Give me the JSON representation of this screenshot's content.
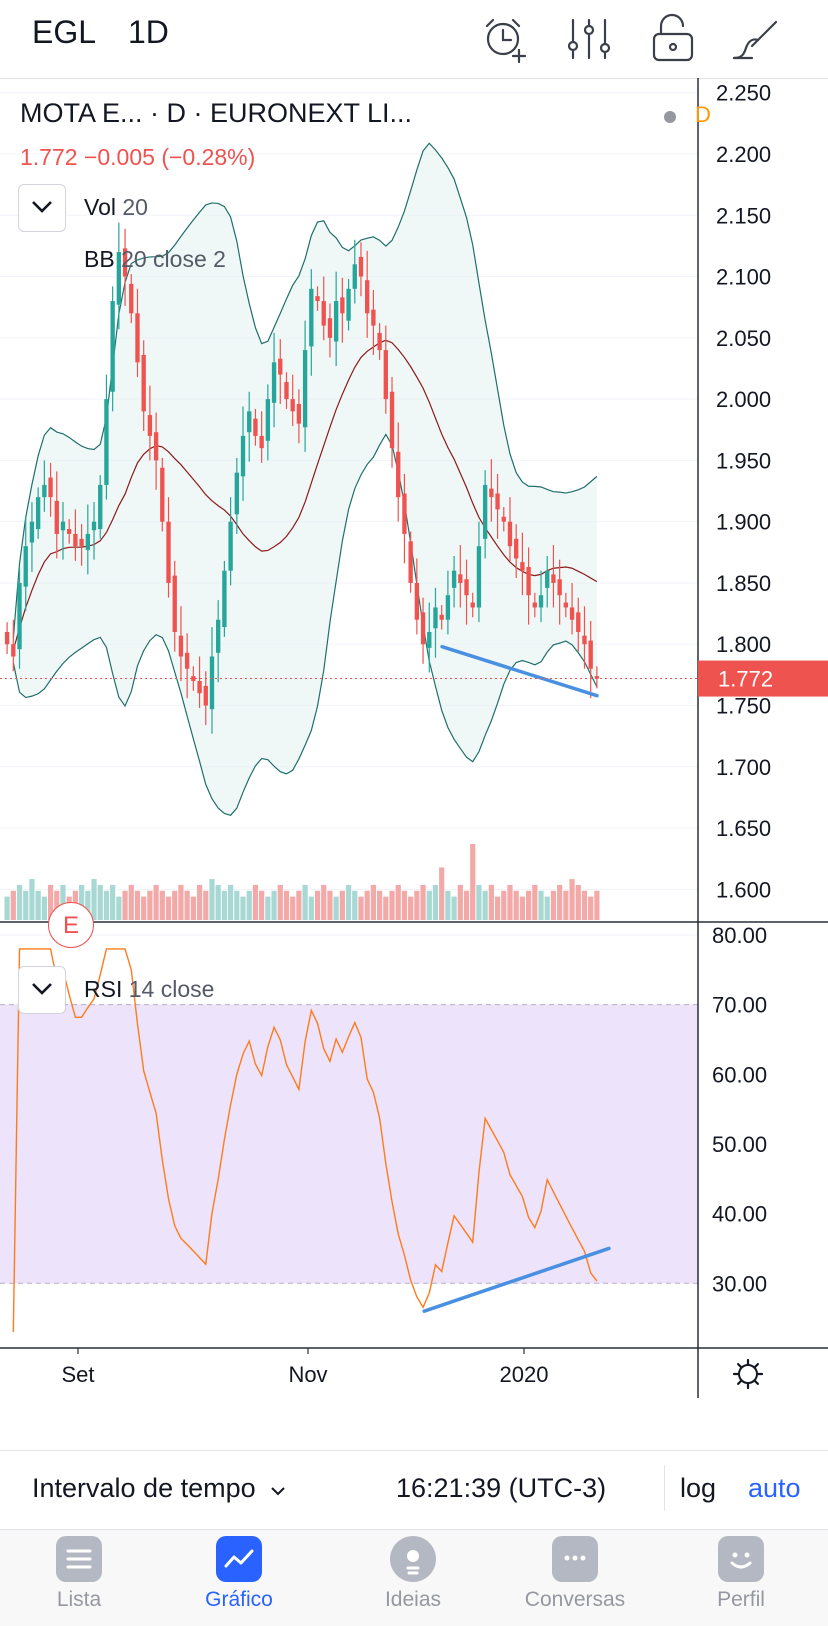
{
  "header": {
    "symbol": "EGL",
    "interval": "1D",
    "icons": [
      "alarm-add-icon",
      "indicators-sliders-icon",
      "unlock-icon",
      "drawing-brush-icon"
    ]
  },
  "legend": {
    "title": "MOTA E...  · D · EURONEXT LI...",
    "price_change": "1.772  −0.005 (−0.28%)",
    "status": "D"
  },
  "indicators": {
    "vol": {
      "name": "Vol",
      "params": "20"
    },
    "bb": {
      "name": "BB",
      "params": "20 close 2"
    },
    "rsi": {
      "name": "RSI",
      "params": "14 close"
    }
  },
  "earnings_badge": "E",
  "toolbar": {
    "range_label": "Intervalo de tempo",
    "time": "16:21:39 (UTC-3)",
    "log_label": "log",
    "auto_label": "auto"
  },
  "tabs": [
    {
      "label": "Lista",
      "icon": "list-icon",
      "active": false
    },
    {
      "label": "Gráfico",
      "icon": "chart-icon",
      "active": true
    },
    {
      "label": "Ideias",
      "icon": "ideas-bulb-icon",
      "active": false
    },
    {
      "label": "Conversas",
      "icon": "chat-icon",
      "active": false
    },
    {
      "label": "Perfil",
      "icon": "profile-icon",
      "active": false
    }
  ],
  "chart_data": [
    {
      "type": "candlestick",
      "ylim": [
        1.575,
        2.262
      ],
      "y_ticks": [
        "2.250",
        "2.200",
        "2.150",
        "2.100",
        "2.050",
        "2.000",
        "1.950",
        "1.900",
        "1.850",
        "1.800",
        "1.750",
        "1.700",
        "1.650",
        "1.600"
      ],
      "last_price": 1.772,
      "last_price_label": "1.772",
      "colors": {
        "up": "#26a69a",
        "down": "#ef5350",
        "bb": "#1f6f6a",
        "bb_mid": "#8b1a1a",
        "trend": "#4a90e2"
      },
      "closes": [
        1.8,
        1.79,
        1.85,
        1.88,
        1.9,
        1.92,
        1.93,
        1.92,
        1.89,
        1.9,
        1.89,
        1.88,
        1.88,
        1.89,
        1.9,
        1.93,
        2.0,
        2.08,
        2.12,
        2.1,
        2.07,
        2.03,
        1.99,
        1.97,
        1.95,
        1.9,
        1.85,
        1.81,
        1.79,
        1.78,
        1.77,
        1.76,
        1.75,
        1.79,
        1.82,
        1.86,
        1.9,
        1.94,
        1.97,
        1.99,
        1.97,
        1.96,
        2.0,
        2.03,
        2.02,
        2.0,
        1.99,
        1.98,
        2.04,
        2.09,
        2.08,
        2.06,
        2.05,
        2.08,
        2.07,
        2.09,
        2.11,
        2.1,
        2.07,
        2.06,
        2.04,
        2.0,
        1.96,
        1.92,
        1.89,
        1.85,
        1.82,
        1.8,
        1.81,
        1.83,
        1.82,
        1.84,
        1.86,
        1.85,
        1.84,
        1.83,
        1.88,
        1.93,
        1.92,
        1.91,
        1.9,
        1.88,
        1.87,
        1.86,
        1.84,
        1.83,
        1.84,
        1.86,
        1.85,
        1.84,
        1.83,
        1.82,
        1.81,
        1.8,
        1.78,
        1.772
      ],
      "trendline": {
        "from": [
          0.735,
          1.798
        ],
        "to": [
          0.995,
          1.758
        ]
      }
    },
    {
      "type": "bar",
      "name": "Vol 20",
      "values": [
        4,
        5,
        6,
        5,
        7,
        5,
        4,
        6,
        5,
        6,
        4,
        5,
        6,
        5,
        7,
        6,
        5,
        6,
        4,
        5,
        6,
        5,
        4,
        5,
        6,
        5,
        4,
        5,
        6,
        5,
        4,
        6,
        5,
        7,
        6,
        5,
        6,
        5,
        4,
        5,
        6,
        5,
        4,
        5,
        6,
        5,
        4,
        5,
        6,
        4,
        5,
        6,
        5,
        4,
        5,
        6,
        5,
        4,
        5,
        6,
        5,
        4,
        5,
        6,
        5,
        4,
        5,
        6,
        5,
        6,
        9,
        5,
        4,
        6,
        5,
        13,
        6,
        5,
        6,
        4,
        5,
        6,
        5,
        4,
        5,
        6,
        5,
        4,
        5,
        6,
        5,
        7,
        6,
        5,
        4,
        5
      ]
    },
    {
      "type": "line",
      "name": "RSI 14 close",
      "ylim": [
        21,
        81
      ],
      "y_ticks": [
        "80.00",
        "70.00",
        "60.00",
        "50.00",
        "40.00",
        "30.00"
      ],
      "band": [
        30,
        70
      ],
      "x_labels": [
        "Set",
        "Nov",
        "2020"
      ],
      "colors": {
        "line": "#ff7b1c",
        "band": "#ede3fb",
        "trend": "#4a90e2"
      },
      "trendline": {
        "from": [
          0.705,
          26.0
        ],
        "to": [
          1.015,
          35.0
        ]
      }
    }
  ]
}
